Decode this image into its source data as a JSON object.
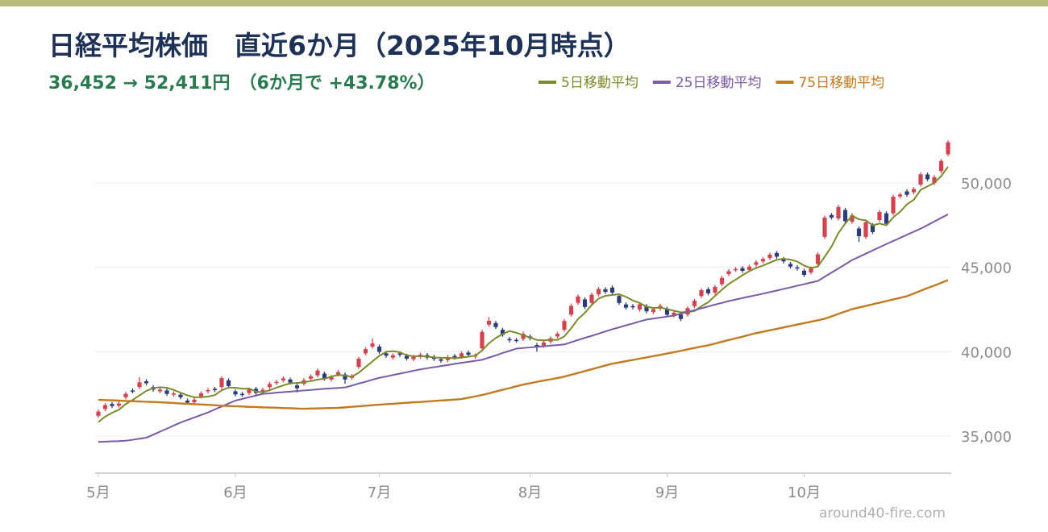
{
  "chart_data": {
    "type": "candlestick",
    "title": "日経平均株価　直近6か月（2025年10月時点）",
    "subtitle": "36,452 → 52,411円　（6か月で +43.78%）",
    "credit": "around40-fire.com",
    "up_color": "#d2434f",
    "down_color": "#2b3d78",
    "grid": true,
    "ylim": [
      32800,
      53200
    ],
    "yticks": [
      {
        "value": 35000,
        "label": "35,000"
      },
      {
        "value": 40000,
        "label": "40,000"
      },
      {
        "value": 45000,
        "label": "45,000"
      },
      {
        "value": 50000,
        "label": "50,000"
      }
    ],
    "categories": [
      "5月",
      null,
      null,
      null,
      null,
      null,
      null,
      null,
      null,
      null,
      null,
      null,
      null,
      null,
      null,
      null,
      null,
      null,
      null,
      null,
      "6月",
      null,
      null,
      null,
      null,
      null,
      null,
      null,
      null,
      null,
      null,
      null,
      null,
      null,
      null,
      null,
      null,
      null,
      null,
      null,
      null,
      "7月",
      null,
      null,
      null,
      null,
      null,
      null,
      null,
      null,
      null,
      null,
      null,
      null,
      null,
      null,
      null,
      null,
      null,
      null,
      null,
      null,
      null,
      "8月",
      null,
      null,
      null,
      null,
      null,
      null,
      null,
      null,
      null,
      null,
      null,
      null,
      null,
      null,
      null,
      null,
      null,
      null,
      null,
      "9月",
      null,
      null,
      null,
      null,
      null,
      null,
      null,
      null,
      null,
      null,
      null,
      null,
      null,
      null,
      null,
      null,
      null,
      null,
      null,
      "10月",
      null,
      null,
      null,
      null,
      null,
      null,
      null,
      null,
      null,
      null,
      null,
      null,
      null,
      null,
      null,
      null,
      null,
      null,
      null,
      null,
      null
    ],
    "open": [
      36200,
      36600,
      36900,
      36800,
      37300,
      37700,
      37900,
      38250,
      37900,
      37650,
      37700,
      37450,
      37450,
      37100,
      37000,
      37350,
      37650,
      37800,
      37900,
      38300,
      37650,
      37500,
      37550,
      37800,
      37600,
      37900,
      38150,
      38300,
      38350,
      38000,
      38100,
      38400,
      38600,
      38700,
      38350,
      38650,
      38650,
      38450,
      39100,
      39900,
      40300,
      40300,
      39900,
      39650,
      39900,
      39750,
      39550,
      39700,
      39800,
      39700,
      39550,
      39500,
      39750,
      39700,
      39950,
      39700,
      40200,
      41600,
      41700,
      41300,
      40750,
      40700,
      40750,
      40900,
      40400,
      40350,
      40600,
      40900,
      41300,
      42200,
      42900,
      43100,
      42900,
      43400,
      43700,
      43800,
      43300,
      42800,
      42700,
      42500,
      42700,
      42350,
      42550,
      42550,
      42150,
      42200,
      42200,
      42700,
      43300,
      43700,
      43500,
      44000,
      44600,
      44850,
      44950,
      44850,
      45150,
      45350,
      45550,
      45850,
      45500,
      45200,
      45000,
      44800,
      44700,
      45200,
      46800,
      48100,
      47900,
      48400,
      47700,
      47300,
      46800,
      47500,
      47800,
      48200,
      48200,
      49200,
      49500,
      49450,
      49900,
      50500,
      50000,
      50700,
      51700
    ],
    "high": [
      36570,
      36950,
      37020,
      37050,
      37620,
      37820,
      38500,
      38370,
      38020,
      37870,
      37820,
      37650,
      37570,
      37220,
      37280,
      37650,
      37840,
      37920,
      38550,
      38420,
      37770,
      37620,
      37870,
      37920,
      37860,
      38210,
      38330,
      38540,
      38470,
      38120,
      38430,
      38660,
      39000,
      38820,
      38610,
      38910,
      38770,
      38670,
      39700,
      40270,
      40800,
      40420,
      40020,
      39900,
      40020,
      39870,
      39810,
      39940,
      39920,
      39820,
      39670,
      39800,
      39870,
      40020,
      40070,
      39890,
      41290,
      42050,
      41820,
      41420,
      40870,
      40820,
      41190,
      41020,
      40520,
      40670,
      40910,
      41180,
      41940,
      42840,
      43390,
      43220,
      43500,
      43830,
      43820,
      43920,
      43420,
      42920,
      42820,
      42930,
      42820,
      42640,
      42840,
      42670,
      42430,
      42320,
      42700,
      43140,
      43760,
      43820,
      43950,
      44490,
      44890,
      45020,
      45070,
      45160,
      45420,
      45610,
      45870,
      45970,
      45620,
      45320,
      45120,
      44920,
      45050,
      45890,
      48060,
      48220,
      48700,
      48520,
      48210,
      47420,
      47790,
      47620,
      48400,
      48320,
      49300,
      49430,
      49620,
      49760,
      50630,
      50620,
      50460,
      51420,
      52530
    ],
    "low": [
      36080,
      36480,
      36660,
      36680,
      37180,
      37520,
      37780,
      38000,
      37630,
      37530,
      37380,
      37330,
      37180,
      36860,
      36880,
      37230,
      37530,
      37600,
      37780,
      37850,
      37350,
      37330,
      37430,
      37430,
      37480,
      37780,
      38030,
      38180,
      38050,
      37580,
      37980,
      38280,
      38480,
      38280,
      38230,
      38530,
      38100,
      38330,
      38980,
      39780,
      40180,
      39860,
      39640,
      39530,
      39690,
      39470,
      39430,
      39580,
      39530,
      39450,
      39340,
      39380,
      39540,
      39580,
      39700,
      39580,
      40080,
      41480,
      41340,
      40880,
      40550,
      40530,
      40630,
      40680,
      40000,
      40230,
      40480,
      40780,
      41180,
      42080,
      42780,
      42530,
      42780,
      43280,
      43430,
      43380,
      42770,
      42490,
      42510,
      42380,
      42270,
      42230,
      42430,
      42070,
      42030,
      41820,
      42080,
      42580,
      43180,
      43340,
      43380,
      43880,
      44480,
      44730,
      44670,
      44730,
      45030,
      45230,
      45430,
      45510,
      45230,
      44920,
      44810,
      44430,
      44580,
      45080,
      46680,
      47830,
      47780,
      47610,
      47580,
      46500,
      46680,
      46970,
      47680,
      47460,
      48080,
      49080,
      49180,
      49330,
      49780,
      50100,
      49880,
      50580,
      51580
    ],
    "close": [
      36452,
      36831,
      36780,
      36928,
      37503,
      37644,
      38183,
      38128,
      37755,
      37753,
      37498,
      37529,
      37299,
      36986,
      37160,
      37532,
      37724,
      37722,
      38432,
      37965,
      37471,
      37446,
      37747,
      37554,
      37742,
      38088,
      38211,
      38421,
      38173,
      37834,
      38311,
      38536,
      38885,
      38403,
      38488,
      38791,
      38354,
      38550,
      39584,
      40151,
      40487,
      39986,
      39762,
      39785,
      39811,
      39587,
      39688,
      39821,
      39646,
      39569,
      39459,
      39678,
      39663,
      39901,
      39819,
      39774,
      41171,
      41826,
      41456,
      40998,
      40674,
      40654,
      41069,
      40799,
      40290,
      40549,
      40794,
      41059,
      41820,
      42718,
      43274,
      42649,
      43378,
      43714,
      43546,
      43499,
      42888,
      42610,
      42633,
      42807,
      42394,
      42520,
      42718,
      42188,
      42310,
      41938,
      42580,
      43018,
      43643,
      43459,
      43837,
      44372,
      44768,
      44902,
      44790,
      45045,
      45303,
      45493,
      45754,
      45630,
      45355,
      45043,
      44932,
      44550,
      44936,
      45769,
      47944,
      47950,
      48580,
      47734,
      48088,
      46847,
      47672,
      47089,
      48277,
      47582,
      49185,
      49316,
      49299,
      49641,
      50512,
      50219,
      50342,
      51307,
      52411
    ],
    "series": [
      {
        "name": "5日移動平均",
        "color": "#7c8a2c",
        "values": [
          35830,
          36150,
          36380,
          36560,
          36899,
          37137,
          37408,
          37677,
          37843,
          37893,
          37863,
          37733,
          37567,
          37413,
          37294,
          37301,
          37340,
          37425,
          37714,
          37875,
          37863,
          37807,
          37812,
          37637,
          37592,
          37715,
          37868,
          38003,
          38127,
          38145,
          38190,
          38255,
          38348,
          38394,
          38525,
          38621,
          38584,
          38517,
          38753,
          39086,
          39425,
          39752,
          39994,
          40034,
          39966,
          39786,
          39727,
          39738,
          39711,
          39662,
          39637,
          39635,
          39603,
          39654,
          39704,
          39767,
          40066,
          40498,
          40809,
          41045,
          41225,
          41122,
          40970,
          40839,
          40697,
          40672,
          40700,
          40698,
          40902,
          41388,
          41933,
          42304,
          42768,
          43147,
          43312,
          43357,
          43405,
          43251,
          43035,
          42887,
          42666,
          42593,
          42614,
          42525,
          42426,
          42335,
          42347,
          42407,
          42698,
          42928,
          43307,
          43666,
          44016,
          44268,
          44534,
          44775,
          44962,
          45107,
          45277,
          45445,
          45507,
          45455,
          45343,
          45102,
          44963,
          45046,
          45626,
          46230,
          47036,
          47595,
          48059,
          47840,
          47784,
          47486,
          47595,
          47493,
          47961,
          48290,
          48732,
          49005,
          49591,
          49797,
          50003,
          50404,
          50958
        ]
      },
      {
        "name": "25日移動平均",
        "color": "#7b5aa6",
        "values": [
          34650,
          34670,
          34690,
          34700,
          34720,
          34780,
          34840,
          34900,
          35080,
          35260,
          35440,
          35620,
          35800,
          35950,
          36100,
          36250,
          36400,
          36580,
          36750,
          36930,
          37100,
          37200,
          37300,
          37400,
          37500,
          37530,
          37570,
          37600,
          37630,
          37670,
          37700,
          37730,
          37770,
          37800,
          37830,
          37850,
          37880,
          37990,
          38110,
          38220,
          38340,
          38450,
          38530,
          38620,
          38700,
          38780,
          38870,
          38950,
          39020,
          39080,
          39150,
          39210,
          39280,
          39340,
          39400,
          39460,
          39520,
          39650,
          39780,
          39920,
          40050,
          40180,
          40220,
          40250,
          40290,
          40320,
          40360,
          40390,
          40430,
          40560,
          40690,
          40820,
          40940,
          41070,
          41200,
          41330,
          41440,
          41560,
          41670,
          41790,
          41900,
          41960,
          42020,
          42080,
          42140,
          42250,
          42360,
          42460,
          42570,
          42680,
          42790,
          42890,
          43000,
          43090,
          43180,
          43270,
          43350,
          43440,
          43530,
          43620,
          43720,
          43810,
          43910,
          44000,
          44100,
          44190,
          44440,
          44690,
          44930,
          45180,
          45430,
          45620,
          45810,
          46000,
          46190,
          46380,
          46560,
          46740,
          46930,
          47110,
          47290,
          47500,
          47720,
          47930,
          48140
        ]
      },
      {
        "name": "75日移動平均",
        "color": "#c27a22",
        "values": [
          37150,
          37130,
          37120,
          37100,
          37080,
          37070,
          37050,
          37030,
          37020,
          37000,
          36980,
          36960,
          36930,
          36910,
          36890,
          36870,
          36850,
          36830,
          36800,
          36780,
          36760,
          36750,
          36730,
          36720,
          36700,
          36690,
          36680,
          36660,
          36650,
          36630,
          36620,
          36630,
          36640,
          36650,
          36660,
          36670,
          36700,
          36730,
          36760,
          36800,
          36830,
          36860,
          36890,
          36910,
          36940,
          36970,
          37000,
          37020,
          37050,
          37080,
          37110,
          37130,
          37160,
          37190,
          37270,
          37350,
          37430,
          37530,
          37640,
          37740,
          37840,
          37950,
          38050,
          38130,
          38210,
          38290,
          38360,
          38440,
          38520,
          38630,
          38740,
          38850,
          38960,
          39070,
          39180,
          39290,
          39360,
          39440,
          39510,
          39590,
          39660,
          39740,
          39810,
          39890,
          39970,
          40050,
          40140,
          40220,
          40300,
          40380,
          40480,
          40590,
          40690,
          40790,
          40890,
          41000,
          41100,
          41180,
          41270,
          41350,
          41440,
          41520,
          41610,
          41690,
          41780,
          41860,
          41950,
          42090,
          42240,
          42380,
          42520,
          42620,
          42710,
          42810,
          42900,
          43000,
          43100,
          43190,
          43290,
          43450,
          43610,
          43770,
          43920,
          44080,
          44240
        ]
      }
    ]
  }
}
